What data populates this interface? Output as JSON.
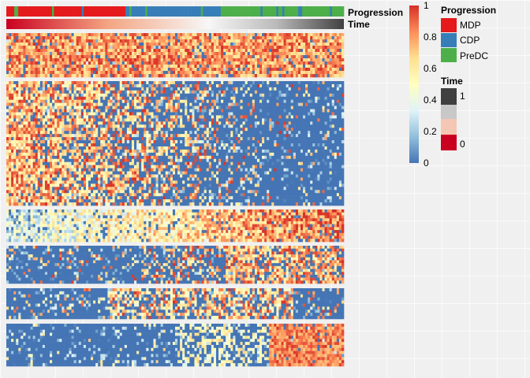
{
  "chart_data": {
    "type": "heatmap",
    "annotations": [
      {
        "name": "Progression",
        "type": "categorical"
      },
      {
        "name": "Time",
        "type": "continuous",
        "range": [
          0,
          1
        ]
      }
    ],
    "row_blocks": [
      {
        "rows": 14,
        "pattern": "high_all"
      },
      {
        "rows": 40,
        "pattern": "high_early"
      },
      {
        "rows": 11,
        "pattern": "mid_to_high"
      },
      {
        "rows": 13,
        "pattern": "high_mid_late"
      },
      {
        "rows": 10,
        "pattern": "high_mid"
      },
      {
        "rows": 14,
        "pattern": "high_late"
      }
    ],
    "n_cells": 140,
    "progression_segments": [
      {
        "label": "MDP",
        "start": 0.0,
        "end": 0.35
      },
      {
        "label": "CDP",
        "start": 0.35,
        "end": 0.63
      },
      {
        "label": "PreDC",
        "start": 0.63,
        "end": 1.0
      }
    ],
    "colorbar": {
      "min": 0,
      "max": 1,
      "ticks": [
        "0",
        "0.2",
        "0.4",
        "0.6",
        "0.8",
        "1"
      ],
      "colors": [
        "#4575b4",
        "#91bfdb",
        "#e0f3f8",
        "#ffffbf",
        "#fee090",
        "#fc8d59",
        "#d73027"
      ]
    },
    "legend_progression": {
      "title": "Progression",
      "items": [
        {
          "label": "MDP",
          "color": "#e41a1c"
        },
        {
          "label": "CDP",
          "color": "#377eb8"
        },
        {
          "label": "PreDC",
          "color": "#4daf4a"
        }
      ]
    },
    "legend_time": {
      "title": "Time",
      "items": [
        {
          "label": "1",
          "color": "#404040"
        },
        {
          "label": "",
          "color": "#c8c8c8"
        },
        {
          "label": "",
          "color": "#f4c6b4"
        },
        {
          "label": "0",
          "color": "#ca0020"
        }
      ]
    }
  }
}
